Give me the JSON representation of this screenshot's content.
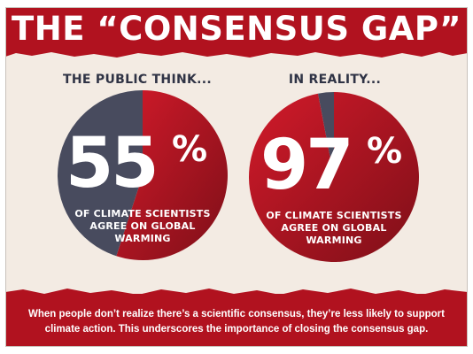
{
  "title": "THE “CONSENSUS GAP”",
  "colors": {
    "brand_red": "#b1121f",
    "pie_red": "#d21a2a",
    "pie_dark_red": "#7e0f18",
    "pie_slate": "#484b5e",
    "paper": "#f3ebe3",
    "label_text": "#2f3345"
  },
  "chart_data": [
    {
      "type": "pie",
      "title": "THE PUBLIC THINK...",
      "value_label": "55",
      "percent_sign": "%",
      "caption": [
        "OF CLIMATE SCIENTISTS",
        "AGREE ON GLOBAL",
        "WARMING"
      ],
      "slices": [
        {
          "value": 55,
          "color": "#d21a2a"
        },
        {
          "value": 45,
          "color": "#484b5e"
        }
      ]
    },
    {
      "type": "pie",
      "title": "IN REALITY...",
      "value_label": "97",
      "percent_sign": "%",
      "caption": [
        "OF CLIMATE SCIENTISTS",
        "AGREE ON GLOBAL",
        "WARMING"
      ],
      "slices": [
        {
          "value": 97,
          "color": "#d21a2a"
        },
        {
          "value": 3,
          "color": "#484b5e"
        }
      ]
    }
  ],
  "footer": {
    "line1": "When people don’t realize there’s a scientific consensus, they’re less likely to support",
    "line2": "climate action. This underscores the importance of closing the consensus gap."
  }
}
